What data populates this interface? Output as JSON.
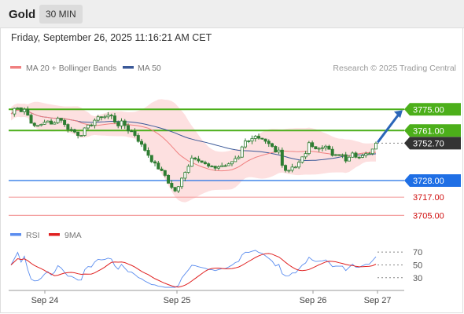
{
  "header": {
    "symbol": "Gold",
    "timeframe": "30 MIN",
    "datetime": "Friday, September 26, 2025 11:16:21 AM CET"
  },
  "legend": {
    "ma20_label": "MA 20 + Bollinger Bands",
    "ma50_label": "MA 50",
    "credit": "Research © 2025 Trading Central",
    "rsi_label": "RSI",
    "ma9_label": "9MA"
  },
  "colors": {
    "ma20": "#f08080",
    "ma50": "#3b5998",
    "bollinger_fill": "#fde0e0",
    "candle": "#2e7d32",
    "resistance": "#4caf1a",
    "support": "#1f6fe5",
    "target_line": "#f4a0a0",
    "arrow": "#2b66b8",
    "price_badge": "#333333",
    "rsi": "#5b8def",
    "rsi_ma": "#e02020"
  },
  "chart_data": [
    {
      "type": "candlestick",
      "title": "Gold",
      "interval": "30 MIN",
      "x_tick_labels": [
        "Sep 24",
        "Sep 25",
        "Sep 26",
        "Sep 27"
      ],
      "ylim": [
        3700,
        3785
      ],
      "current_price": {
        "label": "3752.70",
        "value": 3752.7
      },
      "levels": [
        {
          "label": "3775.00",
          "value": 3775.0,
          "role": "resistance-target"
        },
        {
          "label": "3761.00",
          "value": 3761.0,
          "role": "resistance"
        },
        {
          "label": "3728.00",
          "value": 3728.0,
          "role": "pivot"
        },
        {
          "label": "3717.00",
          "value": 3717.0,
          "role": "support"
        },
        {
          "label": "3705.00",
          "value": 3705.0,
          "role": "support"
        }
      ],
      "forecast": {
        "direction": "up",
        "target": 3775.0
      },
      "grid": false
    },
    {
      "type": "line",
      "series": [
        {
          "name": "RSI"
        },
        {
          "name": "9MA"
        }
      ],
      "y_tick_labels": [
        "70",
        "50",
        "30"
      ],
      "y_ticks": [
        70,
        50,
        30
      ],
      "ylim": [
        15,
        80
      ],
      "grid": false
    }
  ]
}
